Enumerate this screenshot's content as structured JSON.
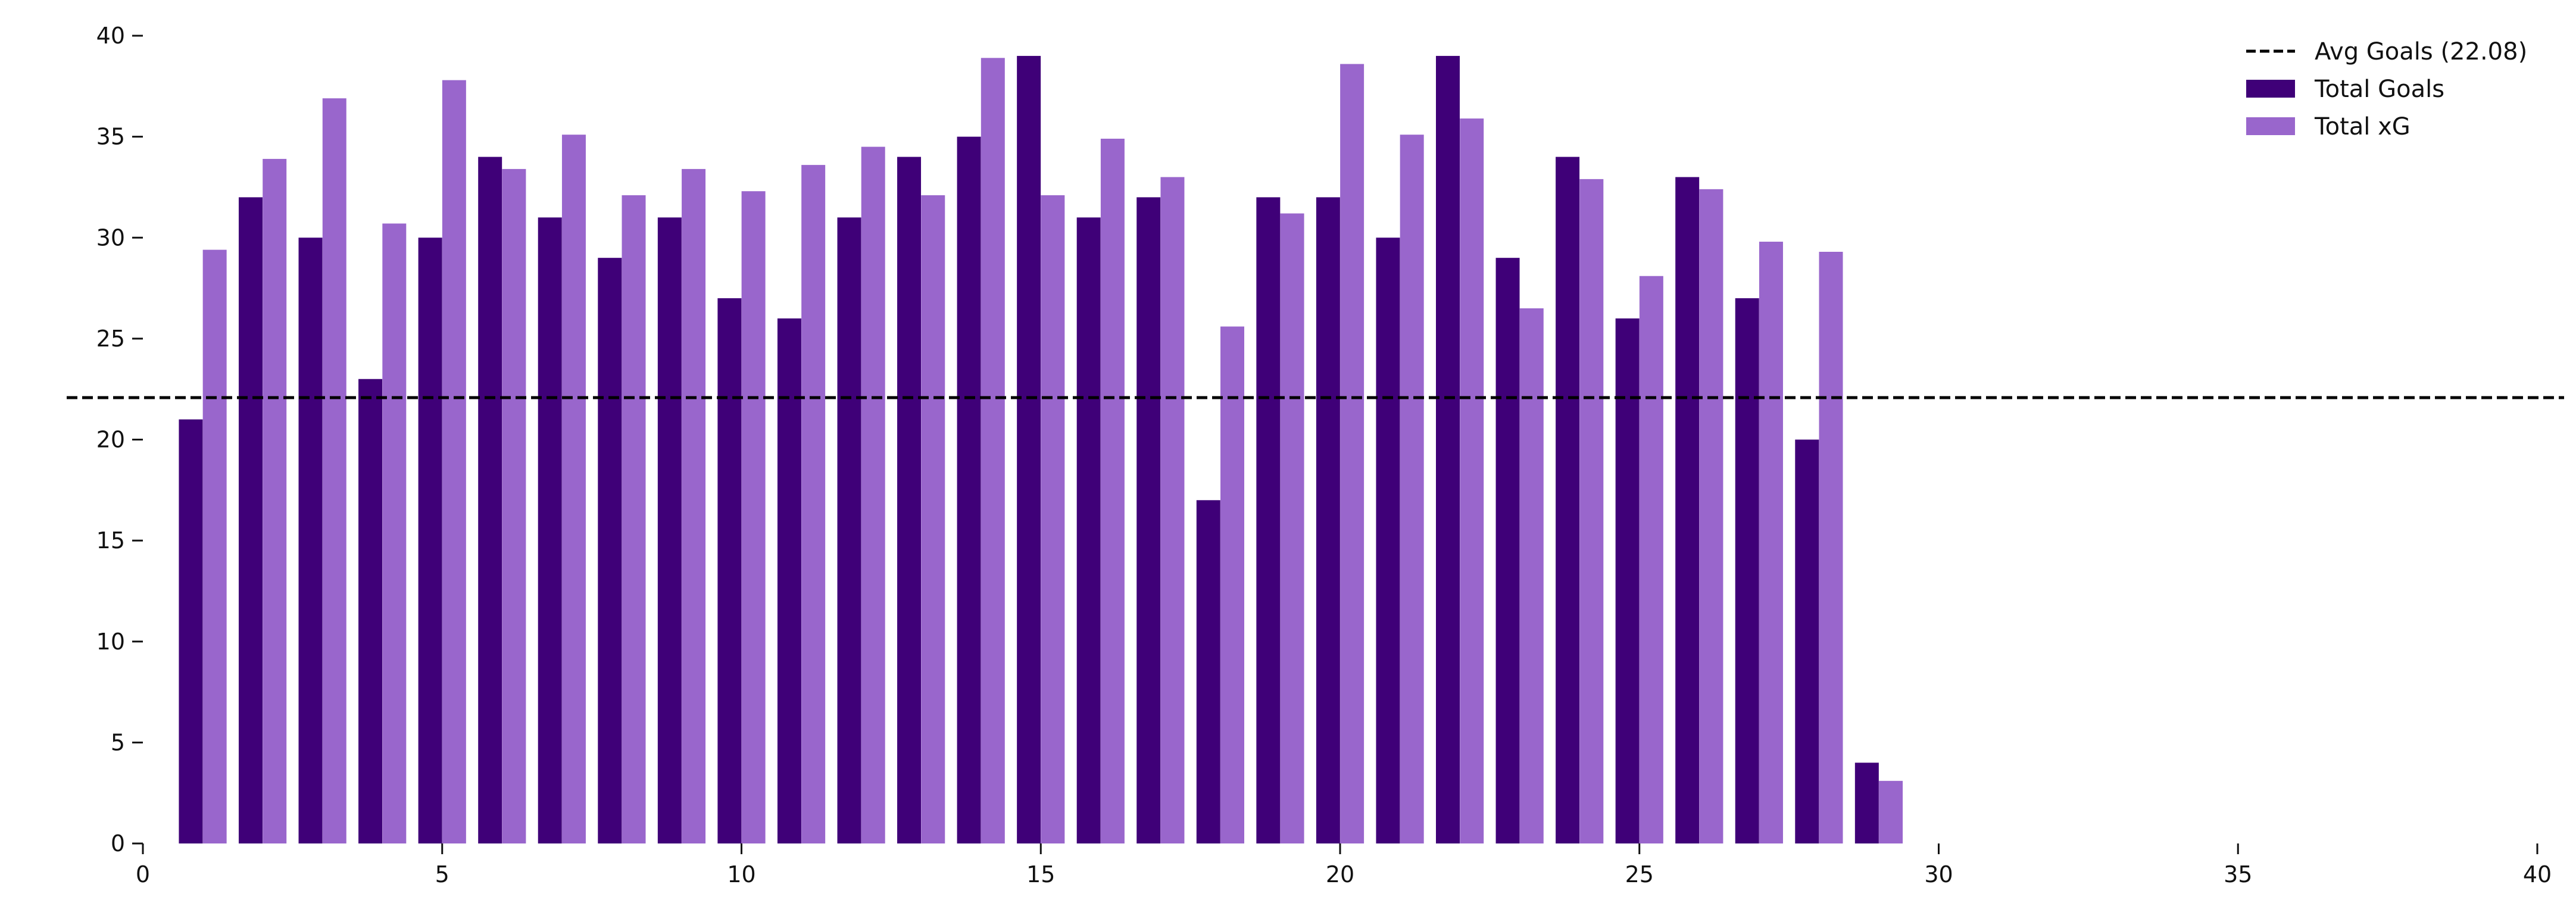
{
  "chart_data": {
    "type": "bar",
    "title": "",
    "xlabel": "",
    "ylabel": "",
    "xlim": [
      0,
      40
    ],
    "ylim": [
      0,
      40
    ],
    "xticks": [
      0,
      5,
      10,
      15,
      20,
      25,
      30,
      35,
      40
    ],
    "yticks": [
      0,
      5,
      10,
      15,
      20,
      25,
      30,
      35,
      40
    ],
    "grid": false,
    "legend_position": "top-right",
    "x": [
      1,
      2,
      3,
      4,
      5,
      6,
      7,
      8,
      9,
      10,
      11,
      12,
      13,
      14,
      15,
      16,
      17,
      18,
      19,
      20,
      21,
      22,
      23,
      24,
      25,
      26,
      27,
      28,
      29
    ],
    "series": [
      {
        "name": "Total Goals",
        "color": "#3f0078",
        "values": [
          21,
          32,
          30,
          23,
          30,
          34,
          31,
          29,
          31,
          27,
          26,
          31,
          34,
          35,
          39,
          31,
          32,
          17,
          32,
          32,
          30,
          39,
          29,
          34,
          26,
          33,
          27,
          20,
          4
        ]
      },
      {
        "name": "Total xG",
        "color": "#9966cc",
        "values": [
          29.4,
          33.9,
          36.9,
          30.7,
          37.8,
          33.4,
          35.1,
          32.1,
          33.4,
          32.3,
          33.6,
          34.5,
          32.1,
          38.9,
          32.1,
          34.9,
          33.0,
          25.6,
          31.2,
          38.6,
          35.1,
          35.9,
          26.5,
          32.9,
          28.1,
          32.4,
          29.8,
          29.3,
          3.1
        ]
      }
    ],
    "reference_lines": [
      {
        "name": "Avg Goals (22.08)",
        "value": 22.08,
        "orientation": "horizontal",
        "style": "dashed",
        "color": "#000000"
      }
    ]
  }
}
